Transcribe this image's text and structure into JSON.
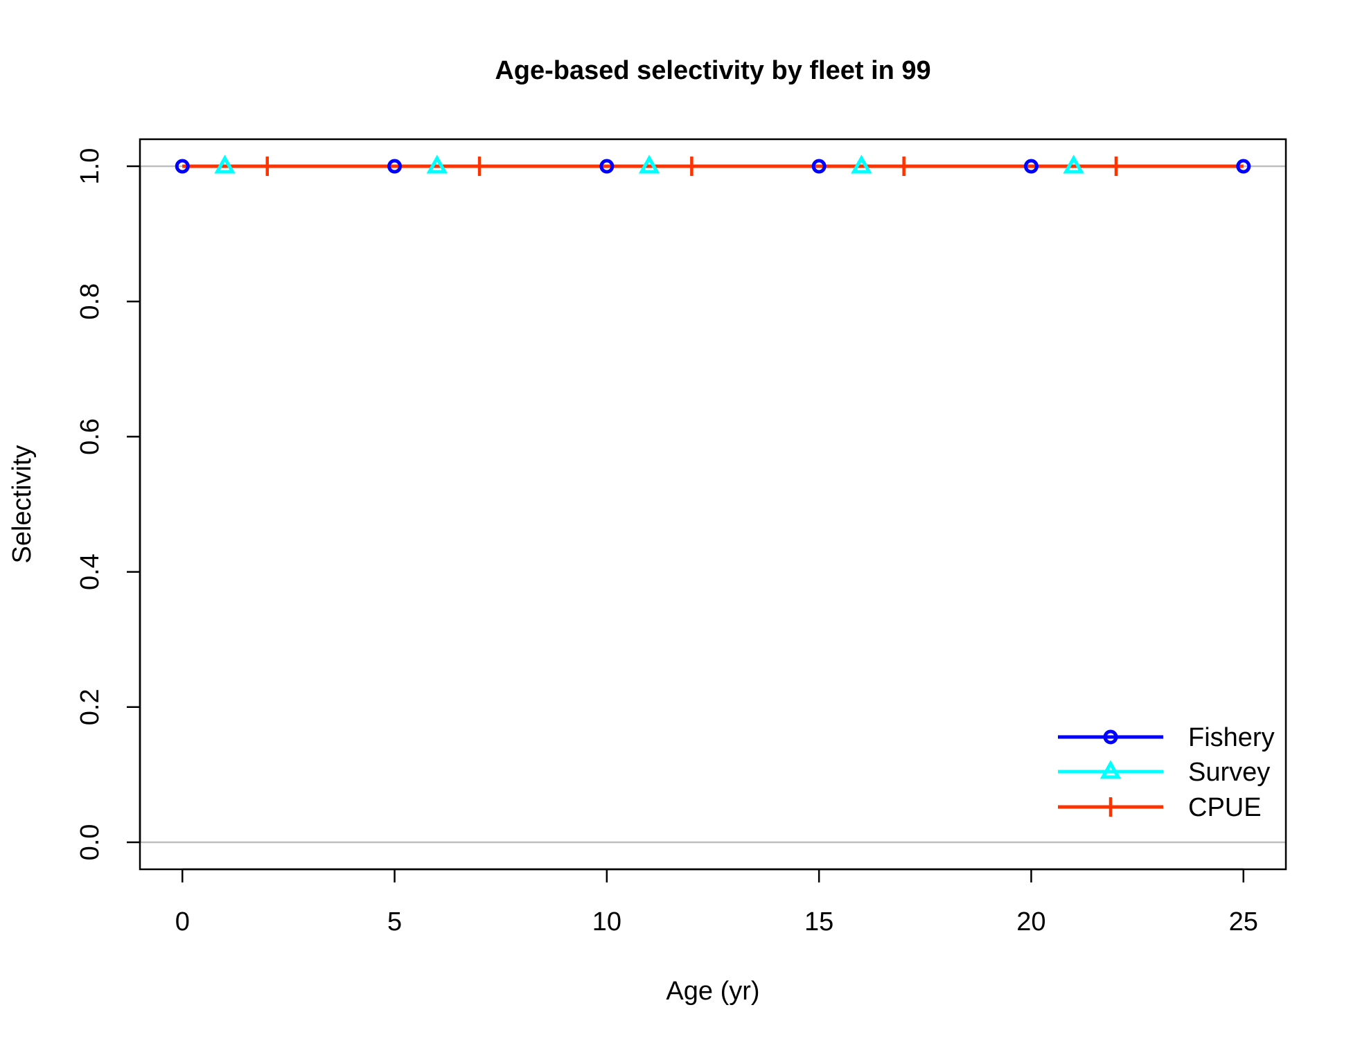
{
  "chart_data": {
    "type": "line",
    "title": "Age-based selectivity by fleet in 99",
    "xlabel": "Age (yr)",
    "ylabel": "Selectivity",
    "xlim": [
      -1,
      26
    ],
    "ylim": [
      -0.04,
      1.04
    ],
    "x_ticks": [
      0,
      5,
      10,
      15,
      20,
      25
    ],
    "x_tick_labels": [
      "0",
      "5",
      "10",
      "15",
      "20",
      "25"
    ],
    "y_ticks": [
      0.0,
      0.2,
      0.4,
      0.6,
      0.8,
      1.0
    ],
    "y_tick_labels": [
      "0.0",
      "0.2",
      "0.4",
      "0.6",
      "0.8",
      "1.0"
    ],
    "reference_lines_y": [
      0,
      1
    ],
    "reference_line_color": "#bebebe",
    "grid": false,
    "legend_position": "bottom-right",
    "x": [
      0,
      1,
      2,
      3,
      4,
      5,
      6,
      7,
      8,
      9,
      10,
      11,
      12,
      13,
      14,
      15,
      16,
      17,
      18,
      19,
      20,
      21,
      22,
      23,
      24,
      25
    ],
    "series": [
      {
        "name": "Fishery",
        "color": "#0000ff",
        "marker": "circle",
        "marker_x": [
          0,
          5,
          10,
          15,
          20,
          25
        ],
        "values": [
          1,
          1,
          1,
          1,
          1,
          1,
          1,
          1,
          1,
          1,
          1,
          1,
          1,
          1,
          1,
          1,
          1,
          1,
          1,
          1,
          1,
          1,
          1,
          1,
          1,
          1
        ]
      },
      {
        "name": "Survey",
        "color": "#00ffff",
        "marker": "triangle",
        "marker_x": [
          1,
          6,
          11,
          16,
          21
        ],
        "values": [
          1,
          1,
          1,
          1,
          1,
          1,
          1,
          1,
          1,
          1,
          1,
          1,
          1,
          1,
          1,
          1,
          1,
          1,
          1,
          1,
          1,
          1,
          1,
          1,
          1,
          1
        ]
      },
      {
        "name": "CPUE",
        "color": "#ff3300",
        "marker": "vbar",
        "marker_x": [
          2,
          7,
          12,
          17,
          22
        ],
        "values": [
          1,
          1,
          1,
          1,
          1,
          1,
          1,
          1,
          1,
          1,
          1,
          1,
          1,
          1,
          1,
          1,
          1,
          1,
          1,
          1,
          1,
          1,
          1,
          1,
          1,
          1
        ]
      }
    ]
  }
}
